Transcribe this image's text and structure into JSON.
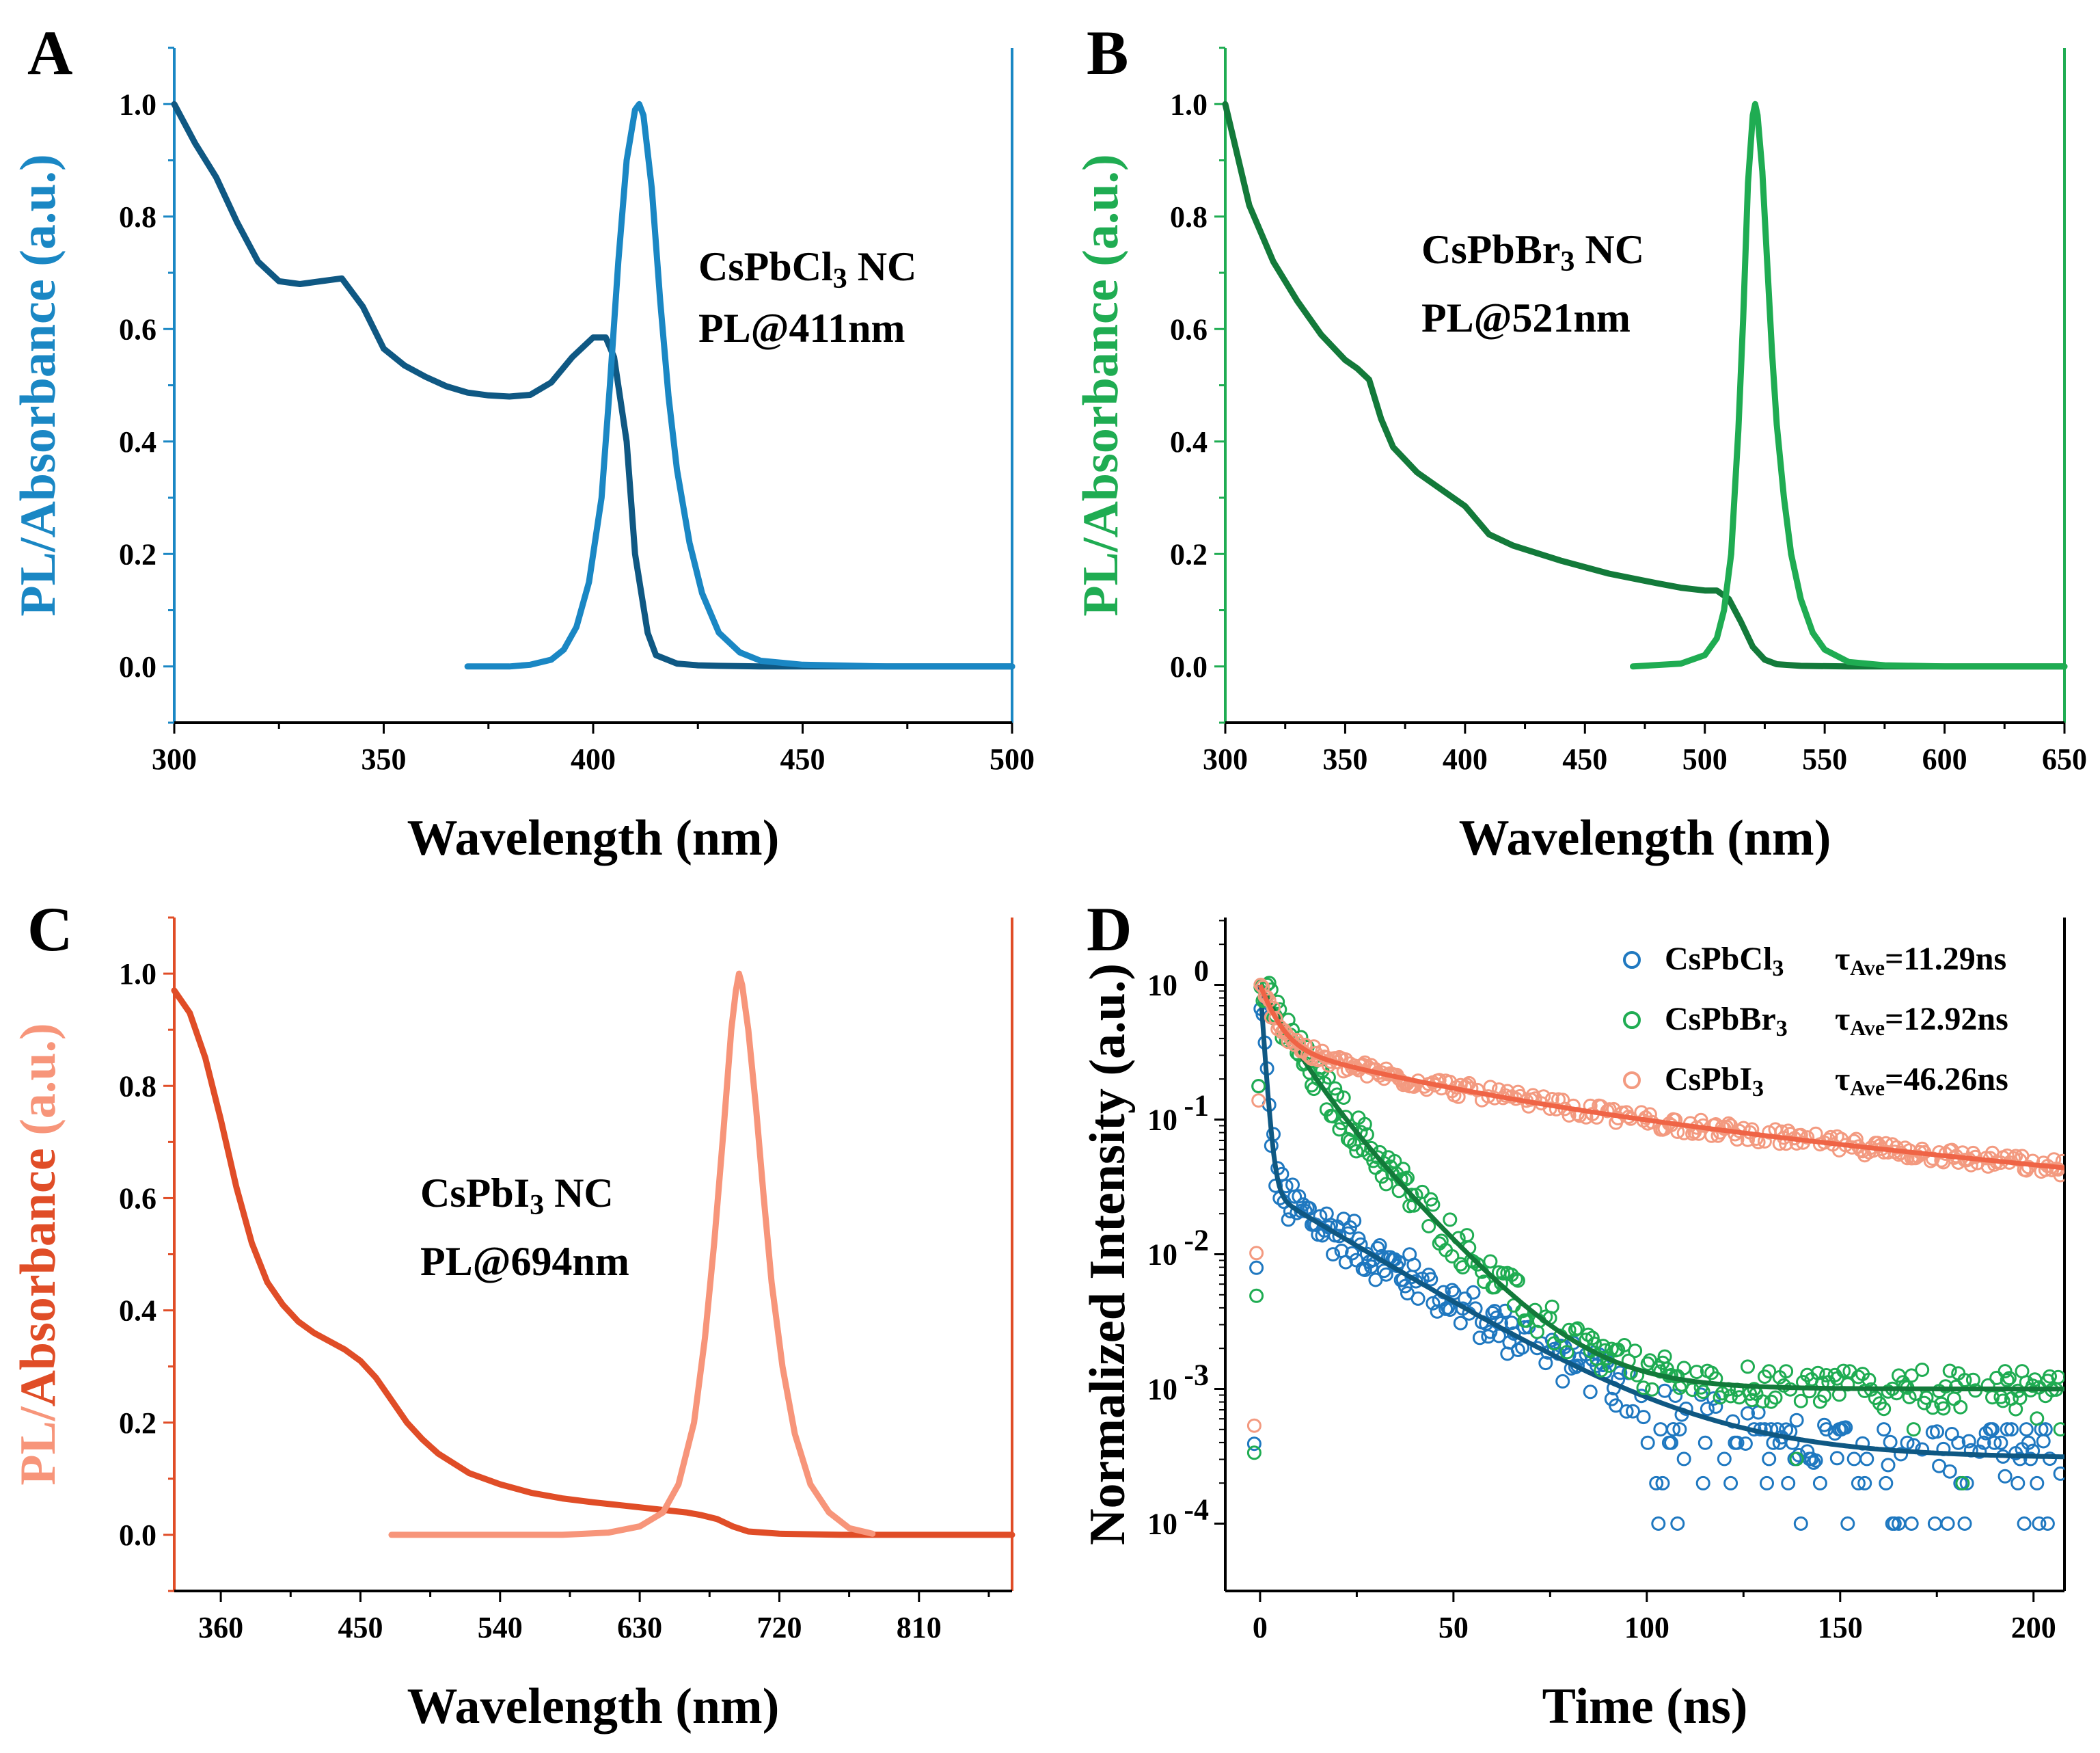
{
  "chart_data": [
    {
      "panel": "A",
      "type": "line",
      "xlabel": "Wavelength (nm)",
      "ylabel_parts": [
        {
          "text": "PL",
          "role": "pl"
        },
        {
          "text": "/",
          "role": "pl"
        },
        {
          "text": "Absorbance",
          "role": "abs"
        },
        {
          "text": " (a.u.)",
          "role": "pl"
        }
      ],
      "xlim": [
        300,
        500
      ],
      "ylim": [
        -0.1,
        1.1
      ],
      "xticks": [
        300,
        350,
        400,
        450,
        500
      ],
      "yticks": [
        0.0,
        0.2,
        0.4,
        0.6,
        0.8,
        1.0
      ],
      "ytick_labels": [
        "0.0",
        "0.2",
        "0.4",
        "0.6",
        "0.8",
        "1.0"
      ],
      "colors": {
        "pl": "#1a87c4",
        "abs": "#0f5883",
        "ylabel_pl": "#1a87c4",
        "ylabel_abs": "#1a87c4",
        "axis": "#1a87c4"
      },
      "annotation": {
        "compound_main": "CsPbCl",
        "compound_sub": "3",
        "compound_tail": " NC",
        "peak": "PL@411nm"
      },
      "series": [
        {
          "name": "Absorbance",
          "role": "abs",
          "x": [
            300,
            305,
            310,
            315,
            320,
            325,
            330,
            335,
            340,
            345,
            350,
            355,
            360,
            365,
            370,
            375,
            380,
            385,
            390,
            395,
            400,
            403,
            405,
            408,
            410,
            413,
            415,
            420,
            425,
            430,
            440,
            450,
            470,
            500
          ],
          "y": [
            1.0,
            0.93,
            0.87,
            0.79,
            0.72,
            0.685,
            0.68,
            0.685,
            0.69,
            0.64,
            0.565,
            0.535,
            0.515,
            0.498,
            0.487,
            0.482,
            0.48,
            0.483,
            0.505,
            0.55,
            0.585,
            0.585,
            0.55,
            0.4,
            0.2,
            0.06,
            0.02,
            0.005,
            0.002,
            0.001,
            0.0,
            0.0,
            0.0,
            0.0
          ]
        },
        {
          "name": "PL",
          "role": "pl",
          "x": [
            370,
            380,
            385,
            390,
            393,
            396,
            399,
            402,
            404,
            406,
            408,
            410,
            411,
            412,
            414,
            416,
            418,
            420,
            423,
            426,
            430,
            435,
            440,
            450,
            470,
            500
          ],
          "y": [
            0.0,
            0.0,
            0.003,
            0.012,
            0.03,
            0.07,
            0.15,
            0.3,
            0.5,
            0.72,
            0.9,
            0.99,
            1.0,
            0.98,
            0.85,
            0.65,
            0.48,
            0.35,
            0.22,
            0.13,
            0.06,
            0.025,
            0.01,
            0.003,
            0.0,
            0.0
          ]
        }
      ]
    },
    {
      "panel": "B",
      "type": "line",
      "xlabel": "Wavelength (nm)",
      "ylabel_parts": [
        {
          "text": "PL",
          "role": "pl"
        },
        {
          "text": "/",
          "role": "pl"
        },
        {
          "text": "Absorbance",
          "role": "abs"
        },
        {
          "text": " (a.u.)",
          "role": "pl"
        }
      ],
      "xlim": [
        300,
        650
      ],
      "ylim": [
        -0.1,
        1.1
      ],
      "xticks": [
        300,
        350,
        400,
        450,
        500,
        550,
        600,
        650
      ],
      "yticks": [
        0.0,
        0.2,
        0.4,
        0.6,
        0.8,
        1.0
      ],
      "ytick_labels": [
        "0.0",
        "0.2",
        "0.4",
        "0.6",
        "0.8",
        "1.0"
      ],
      "colors": {
        "pl": "#1fac52",
        "abs": "#137a3a",
        "ylabel_pl": "#1fac52",
        "ylabel_abs": "#1fac52",
        "axis": "#1fac52"
      },
      "annotation": {
        "compound_main": "CsPbBr",
        "compound_sub": "3",
        "compound_tail": " NC",
        "peak": "PL@521nm"
      },
      "series": [
        {
          "name": "Absorbance",
          "role": "abs",
          "x": [
            300,
            310,
            320,
            330,
            340,
            350,
            355,
            360,
            365,
            370,
            380,
            390,
            400,
            410,
            420,
            440,
            460,
            480,
            490,
            500,
            505,
            510,
            515,
            520,
            525,
            530,
            540,
            560,
            600,
            650
          ],
          "y": [
            1.0,
            0.82,
            0.72,
            0.65,
            0.59,
            0.545,
            0.53,
            0.51,
            0.44,
            0.39,
            0.345,
            0.315,
            0.285,
            0.235,
            0.215,
            0.188,
            0.165,
            0.148,
            0.14,
            0.135,
            0.135,
            0.12,
            0.08,
            0.035,
            0.012,
            0.004,
            0.001,
            0.0,
            0.0,
            0.0
          ]
        },
        {
          "name": "PL",
          "role": "pl",
          "x": [
            470,
            490,
            500,
            505,
            508,
            511,
            514,
            516,
            518,
            520,
            521,
            522,
            524,
            526,
            528,
            530,
            533,
            536,
            540,
            545,
            550,
            560,
            575,
            600,
            650
          ],
          "y": [
            0.0,
            0.005,
            0.02,
            0.05,
            0.1,
            0.2,
            0.42,
            0.62,
            0.86,
            0.98,
            1.0,
            0.98,
            0.88,
            0.72,
            0.56,
            0.43,
            0.3,
            0.2,
            0.12,
            0.06,
            0.03,
            0.008,
            0.002,
            0.0,
            0.0
          ]
        }
      ]
    },
    {
      "panel": "C",
      "type": "line",
      "xlabel": "Wavelength (nm)",
      "ylabel_parts": [
        {
          "text": "PL",
          "role": "pl"
        },
        {
          "text": "/",
          "role": "pl"
        },
        {
          "text": "Absorbance",
          "role": "abs"
        },
        {
          "text": " (a.u.)",
          "role": "pl"
        }
      ],
      "xlim": [
        330,
        870
      ],
      "ylim": [
        -0.1,
        1.1
      ],
      "xticks": [
        360,
        450,
        540,
        630,
        720,
        810
      ],
      "yticks": [
        0.0,
        0.2,
        0.4,
        0.6,
        0.8,
        1.0
      ],
      "ytick_labels": [
        "0.0",
        "0.2",
        "0.4",
        "0.6",
        "0.8",
        "1.0"
      ],
      "colors": {
        "pl": "#f7957a",
        "abs": "#e04d27",
        "ylabel_pl": "#f7957a",
        "ylabel_abs": "#e04d27",
        "axis": "#e04d27"
      },
      "annotation": {
        "compound_main": "CsPbI",
        "compound_sub": "3",
        "compound_tail": " NC",
        "peak": "PL@694nm"
      },
      "series": [
        {
          "name": "Absorbance",
          "role": "abs",
          "x": [
            330,
            340,
            350,
            360,
            370,
            380,
            390,
            400,
            410,
            420,
            430,
            440,
            450,
            460,
            470,
            480,
            490,
            500,
            520,
            540,
            560,
            580,
            600,
            620,
            640,
            660,
            670,
            680,
            690,
            700,
            720,
            760,
            800,
            870
          ],
          "y": [
            0.97,
            0.93,
            0.85,
            0.74,
            0.62,
            0.52,
            0.45,
            0.41,
            0.38,
            0.36,
            0.345,
            0.33,
            0.31,
            0.28,
            0.24,
            0.2,
            0.17,
            0.145,
            0.11,
            0.09,
            0.075,
            0.065,
            0.058,
            0.052,
            0.046,
            0.04,
            0.035,
            0.028,
            0.015,
            0.006,
            0.002,
            0.0,
            0.0,
            0.0
          ]
        },
        {
          "name": "PL",
          "role": "pl",
          "x": [
            470,
            520,
            580,
            610,
            630,
            645,
            655,
            665,
            672,
            678,
            684,
            689,
            692,
            694,
            696,
            700,
            705,
            710,
            715,
            722,
            730,
            740,
            752,
            765,
            780
          ],
          "y": [
            0.0,
            0.0,
            0.0,
            0.004,
            0.015,
            0.04,
            0.09,
            0.2,
            0.35,
            0.52,
            0.72,
            0.9,
            0.97,
            1.0,
            0.98,
            0.9,
            0.76,
            0.6,
            0.45,
            0.3,
            0.18,
            0.09,
            0.04,
            0.012,
            0.002
          ]
        }
      ]
    },
    {
      "panel": "D",
      "type": "scatter",
      "yscale": "log",
      "xlabel": "Time (ns)",
      "ylabel": "Normalized Intensity (a.u.)",
      "xlim": [
        -9,
        208
      ],
      "ylim_log10": [
        -4.5,
        0.5
      ],
      "xticks": [
        0,
        50,
        100,
        150,
        200
      ],
      "yticks_exp": [
        -4,
        -3,
        -2,
        -1,
        0
      ],
      "ytick_base": "10",
      "ytick_exponents": [
        "-4",
        "-3",
        "-2",
        "-1",
        "0"
      ],
      "colors": {
        "axis": "#000000"
      },
      "series": [
        {
          "name": "CsPbCl3",
          "label_main": "CsPbCl",
          "label_sub": "3",
          "tau_symbol": "τ",
          "tau_sub": "Ave",
          "tau_value": "=11.29ns",
          "color": "#1f78c0",
          "fit_color": "#0f5883",
          "fit": {
            "A1": 0.95,
            "t1": 1.0,
            "A2": 0.03,
            "t2": 25,
            "floor": 0.0003
          },
          "noise": 0.35,
          "floor_levels_exp": [
            -4,
            -3.7,
            -3.52,
            -3.4,
            -3.3
          ]
        },
        {
          "name": "CsPbBr3",
          "label_main": "CsPbBr",
          "label_sub": "3",
          "tau_symbol": "τ",
          "tau_sub": "Ave",
          "tau_value": "=12.92ns",
          "color": "#1fac52",
          "fit_color": "#137a3a",
          "fit": {
            "A1": 0.58,
            "t1": 6,
            "A2": 0.42,
            "t2": 14,
            "floor": 0.001
          },
          "noise": 0.3,
          "floor_levels_exp": [
            -3.7,
            -3.52,
            -3.3,
            -3.22,
            -3.15
          ]
        },
        {
          "name": "CsPbI3",
          "label_main": "CsPbI",
          "label_sub": "3",
          "tau_symbol": "τ",
          "tau_sub": "Ave",
          "tau_value": "=46.26ns",
          "color": "#f39a80",
          "fit_color": "#ef6446",
          "fit": {
            "A1": 0.55,
            "t1": 4,
            "A2": 0.17,
            "t2": 40,
            "A3": 0.13,
            "t3": 150,
            "floor": 0.004
          },
          "noise": 0.12,
          "floor_levels_exp": []
        }
      ]
    }
  ]
}
